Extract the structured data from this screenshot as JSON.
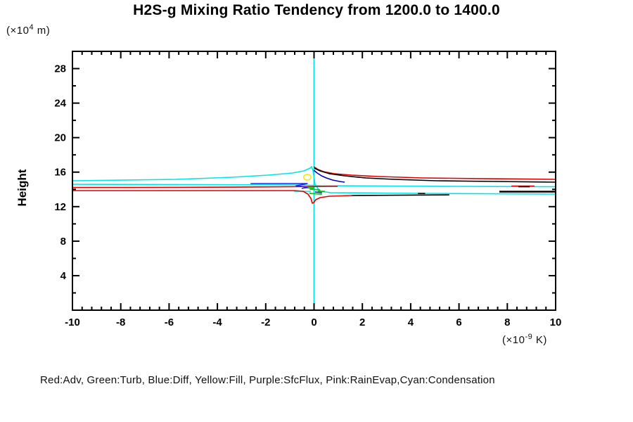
{
  "chart_data": {
    "type": "line",
    "title": "H2S-g Mixing Ratio Tendency from 1200.0 to 1400.0",
    "ylabel": "Height",
    "xlabel": "",
    "y_axis_unit": {
      "prefix": "(×10",
      "sup": "4",
      "suffix": " m)"
    },
    "x_axis_unit": {
      "prefix": "(×10",
      "sup": "-9",
      "suffix": " K)"
    },
    "xlim": [
      -10,
      10
    ],
    "ylim": [
      0,
      30
    ],
    "x_ticks": {
      "major": [
        -10,
        -8,
        -6,
        -4,
        -2,
        0,
        2,
        4,
        6,
        8,
        10
      ],
      "minor_step": 0.4
    },
    "y_ticks": {
      "major": [
        4,
        8,
        12,
        16,
        20,
        24,
        28
      ],
      "minor_step": 2
    },
    "grid": false,
    "axis_color": "#000000",
    "legend_text": "Red:Adv, Green:Turb, Blue:Diff, Yellow:Fill, Purple:SfcFlux, Pink:RainEvap,Cyan:Condensation",
    "legend_position": "bottom",
    "legend_colors": {
      "Adv": "#e00000",
      "Turb": "#00cc00",
      "Diff": "#0000dd",
      "Fill": "#eded00",
      "SfcFlux": "#9900cc",
      "RainEvap": "#ff69b4",
      "Condensation": "#00e5e5"
    },
    "zero_line": {
      "x": 0,
      "color": "#00e5e5"
    },
    "yellow_loop": {
      "cx": -0.28,
      "cy": 15.41,
      "rx": 0.15,
      "ry": 0.33,
      "color": "#eded00"
    },
    "series": [
      {
        "name": "condensation-upper",
        "color": "#00e5e5",
        "w": 1.6,
        "pts": [
          [
            -10,
            15.0
          ],
          [
            -5.7,
            15.16
          ],
          [
            -3.4,
            15.41
          ],
          [
            -1.9,
            15.65
          ],
          [
            -0.9,
            15.9
          ],
          [
            -0.42,
            16.14
          ],
          [
            -0.16,
            16.47
          ],
          [
            -0.1,
            16.63
          ],
          [
            -0.04,
            16.14
          ],
          [
            0.01,
            15.25
          ],
          [
            0.04,
            14.59
          ],
          [
            0.16,
            14.1
          ],
          [
            0.28,
            13.78
          ],
          [
            0.68,
            13.62
          ],
          [
            4.5,
            13.53
          ],
          [
            10,
            13.45
          ]
        ]
      },
      {
        "name": "condensation-mid",
        "color": "#00e5e5",
        "w": 1.6,
        "pts": [
          [
            -10,
            14.59
          ],
          [
            -4.3,
            14.55
          ],
          [
            -0.5,
            14.51
          ],
          [
            0.25,
            14.43
          ],
          [
            5.9,
            14.35
          ],
          [
            10,
            14.31
          ]
        ]
      },
      {
        "name": "condensation-left-stub",
        "color": "#00e5e5",
        "w": 1.6,
        "pts": [
          [
            -0.83,
            13.78
          ],
          [
            -0.13,
            13.78
          ]
        ]
      },
      {
        "name": "adv-upper-left",
        "color": "#e00000",
        "w": 1.6,
        "pts": [
          [
            -10,
            14.22
          ],
          [
            -7.5,
            14.22
          ],
          [
            -3.4,
            14.26
          ],
          [
            0.98,
            14.35
          ]
        ]
      },
      {
        "name": "adv-lower-spike",
        "color": "#e00000",
        "w": 1.6,
        "pts": [
          [
            -10,
            13.86
          ],
          [
            -4.3,
            13.86
          ],
          [
            -0.83,
            13.86
          ],
          [
            -0.45,
            13.78
          ],
          [
            -0.25,
            13.45
          ],
          [
            -0.13,
            12.96
          ],
          [
            -0.07,
            12.39
          ],
          [
            -0.01,
            12.47
          ],
          [
            0.07,
            12.8
          ],
          [
            0.25,
            13.04
          ],
          [
            0.63,
            13.21
          ],
          [
            1.56,
            13.29
          ]
        ]
      },
      {
        "name": "adv-peak-right",
        "color": "#e00000",
        "w": 1.6,
        "pts": [
          [
            -0.01,
            16.63
          ],
          [
            0.16,
            16.31
          ],
          [
            0.39,
            16.06
          ],
          [
            0.83,
            15.82
          ],
          [
            1.56,
            15.65
          ],
          [
            2.7,
            15.49
          ],
          [
            4.5,
            15.33
          ],
          [
            6.8,
            15.25
          ],
          [
            10,
            15.16
          ]
        ]
      },
      {
        "name": "adv-right-stub",
        "color": "#e00000",
        "w": 1.6,
        "pts": [
          [
            8.17,
            14.39
          ],
          [
            9.13,
            14.39
          ]
        ]
      },
      {
        "name": "turb-zigzag-1",
        "color": "#00cc00",
        "w": 1.8,
        "pts": [
          [
            -0.39,
            14.18
          ],
          [
            -0.01,
            14.18
          ],
          [
            -0.16,
            14.02
          ],
          [
            0.25,
            13.94
          ]
        ]
      },
      {
        "name": "turb-zigzag-2",
        "color": "#00cc00",
        "w": 1.8,
        "pts": [
          [
            -0.19,
            13.53
          ],
          [
            0.33,
            13.45
          ]
        ]
      },
      {
        "name": "turb-stub",
        "color": "#00cc00",
        "w": 1.8,
        "pts": [
          [
            0.16,
            13.78
          ],
          [
            0.45,
            13.78
          ]
        ]
      },
      {
        "name": "diff-peak-right",
        "color": "#0000bb",
        "w": 1.6,
        "pts": [
          [
            -0.01,
            16.22
          ],
          [
            0.13,
            15.9
          ],
          [
            0.31,
            15.57
          ],
          [
            0.51,
            15.33
          ],
          [
            0.77,
            15.08
          ],
          [
            1.06,
            14.92
          ],
          [
            1.27,
            14.84
          ]
        ]
      },
      {
        "name": "diff-left",
        "color": "#2222ee",
        "w": 1.6,
        "pts": [
          [
            -2.63,
            14.67
          ],
          [
            -0.28,
            14.67
          ],
          [
            -0.74,
            14.43
          ],
          [
            -0.28,
            14.26
          ],
          [
            -0.51,
            14.1
          ]
        ]
      },
      {
        "name": "diff-right-stub",
        "color": "#2222ee",
        "w": 1.6,
        "pts": [
          [
            0.04,
            13.7
          ],
          [
            0.33,
            13.62
          ]
        ]
      },
      {
        "name": "black-peak-right",
        "color": "#000000",
        "w": 1.6,
        "pts": [
          [
            0.01,
            16.47
          ],
          [
            0.25,
            16.14
          ],
          [
            0.63,
            15.82
          ],
          [
            1.27,
            15.57
          ],
          [
            2.14,
            15.33
          ],
          [
            3.3,
            15.16
          ],
          [
            5.05,
            15.0
          ],
          [
            7.4,
            14.92
          ],
          [
            10,
            14.84
          ]
        ]
      },
      {
        "name": "black-bottom",
        "color": "#000000",
        "w": 1.6,
        "pts": [
          [
            1.56,
            13.29
          ],
          [
            5.6,
            13.37
          ]
        ]
      },
      {
        "name": "black-right-thick",
        "color": "#000000",
        "w": 2.6,
        "pts": [
          [
            7.67,
            13.74
          ],
          [
            10,
            13.74
          ]
        ]
      },
      {
        "name": "black-tiny",
        "color": "#000000",
        "w": 1.6,
        "pts": [
          [
            4.3,
            13.53
          ],
          [
            4.6,
            13.53
          ]
        ]
      },
      {
        "name": "black-right-stub",
        "color": "#000000",
        "w": 1.6,
        "pts": [
          [
            8.46,
            14.31
          ],
          [
            8.92,
            14.31
          ]
        ]
      }
    ]
  }
}
